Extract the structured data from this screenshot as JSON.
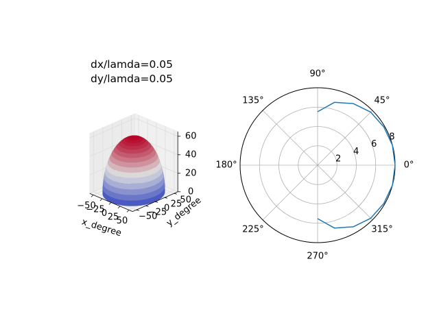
{
  "chart_data": [
    {
      "type": "surface3d",
      "title_lines": [
        "dx/lamda=0.05",
        "dy/lamda=0.05"
      ],
      "xlabel": "x_degree",
      "ylabel": "y_degree",
      "zlabel": "",
      "xlim": [
        -60,
        60
      ],
      "ylim": [
        -60,
        60
      ],
      "zlim": [
        0,
        65
      ],
      "xticks": [
        "−50",
        "−25",
        "0",
        "25",
        "50"
      ],
      "yticks": [
        "−50",
        "−25",
        "0",
        "25",
        "50"
      ],
      "zticks": [
        "0",
        "20",
        "40",
        "60"
      ],
      "z_formula": "z = sqrt(60^2 - x^2 - y^2) over the disc x^2 + y^2 <= 60^2",
      "radius_deg": 60,
      "peak": 60,
      "colormap": "coolwarm",
      "colors": {
        "low": "#3b4cc0",
        "mid": "#dddddd",
        "high": "#b40426"
      }
    },
    {
      "type": "polar-line",
      "theta_ticks": [
        "0°",
        "45°",
        "90°",
        "135°",
        "180°",
        "225°",
        "270°",
        "315°"
      ],
      "r_ticks": [
        "2",
        "4",
        "6",
        "8"
      ],
      "rmax": 8,
      "series": [
        {
          "color": "#1f77b4",
          "theta_deg": [
            -90,
            -75,
            -60,
            -45,
            -30,
            -15,
            0,
            15,
            30,
            45,
            60,
            75,
            90
          ],
          "r": [
            5.52,
            6.72,
            7.35,
            7.75,
            7.9,
            8.0,
            8.0,
            8.0,
            7.9,
            7.75,
            7.35,
            6.72,
            5.52
          ]
        }
      ]
    }
  ]
}
